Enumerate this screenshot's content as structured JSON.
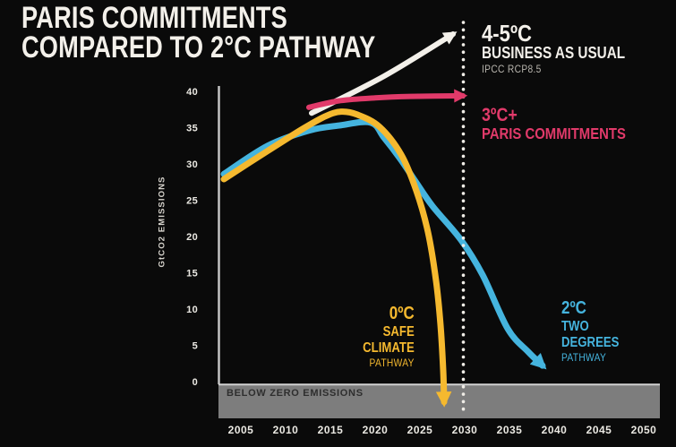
{
  "title": {
    "line1": "PARIS COMMITMENTS",
    "line2": "COMPARED TO 2°C PATHWAY"
  },
  "labels": {
    "bau": {
      "temp": "4-5ºC",
      "name": "BUSINESS AS USUAL",
      "source": "IPCC RCP8.5"
    },
    "paris": {
      "temp": "3ºC+",
      "name": "PARIS COMMITMENTS"
    },
    "safe": {
      "temp": "0ºC",
      "line1": "SAFE",
      "line2": "CLIMATE",
      "line3": "PATHWAY"
    },
    "two": {
      "temp": "2ºC",
      "line1": "TWO",
      "line2": "DEGREES",
      "line3": "PATHWAY"
    },
    "below_zero": "BELOW ZERO EMISSIONS",
    "y_axis": "GtCO2 EMISSIONS"
  },
  "colors": {
    "background": "#0a0a0a",
    "white_line": "#f3f0ea",
    "pink": "#e13a6a",
    "yellow": "#f5b92f",
    "blue": "#45b4de",
    "band": "#7d7d7d",
    "band_border": "#d2d2d2",
    "axis_line": "#c9c9c9",
    "tick_text": "#ebe9e3",
    "ipcc_text": "#b8b5ae",
    "band_text": "#2e2e2e",
    "ylabel_text": "#d6d3cc",
    "dotted_line": "#f0ede7"
  },
  "chart_data": {
    "type": "line",
    "title": "PARIS COMMITMENTS COMPARED TO 2°C PATHWAY",
    "xlabel": "",
    "ylabel": "GtCO2 EMISSIONS",
    "yticks": [
      0,
      5,
      10,
      15,
      20,
      25,
      30,
      35,
      40
    ],
    "xticks": [
      2005,
      2010,
      2015,
      2020,
      2025,
      2030,
      2035,
      2040,
      2045,
      2050
    ],
    "ylim": [
      0,
      40
    ],
    "xlim": [
      2003,
      2052
    ],
    "grid": false,
    "legend_position": "inline-annotations",
    "series": [
      {
        "id": "bau",
        "name": "4-5ºC Business as usual (IPCC RCP8.5)",
        "color": "#f3f0ea",
        "arrow": true,
        "points": [
          [
            2012.9,
            37.0
          ],
          [
            2021.0,
            42.1
          ],
          [
            2028.7,
            47.9
          ]
        ]
      },
      {
        "id": "paris",
        "name": "3ºC+ Paris Commitments",
        "color": "#e13a6a",
        "arrow": true,
        "points": [
          [
            2012.6,
            37.8
          ],
          [
            2016.0,
            38.7
          ],
          [
            2020.0,
            39.1
          ],
          [
            2024.0,
            39.3
          ],
          [
            2029.8,
            39.4
          ]
        ]
      },
      {
        "id": "safe",
        "name": "0ºC Safe Climate Pathway",
        "color": "#f5b92f",
        "arrow": true,
        "points": [
          [
            2003.1,
            27.9
          ],
          [
            2008.0,
            31.8
          ],
          [
            2012.0,
            34.9
          ],
          [
            2014.5,
            36.6
          ],
          [
            2016.2,
            37.2
          ],
          [
            2018.0,
            36.8
          ],
          [
            2020.5,
            35.1
          ],
          [
            2022.9,
            31.3
          ],
          [
            2024.6,
            26.3
          ],
          [
            2025.9,
            20.6
          ],
          [
            2026.8,
            13.9
          ],
          [
            2027.3,
            7.8
          ],
          [
            2027.6,
            1.5
          ],
          [
            2027.7,
            -2.8
          ]
        ]
      },
      {
        "id": "two",
        "name": "2ºC Two Degrees Pathway",
        "color": "#45b4de",
        "arrow": true,
        "points": [
          [
            2003.1,
            28.6
          ],
          [
            2008.0,
            32.5
          ],
          [
            2012.6,
            34.6
          ],
          [
            2016.0,
            35.3
          ],
          [
            2019.5,
            35.7
          ],
          [
            2021.0,
            33.6
          ],
          [
            2022.8,
            30.7
          ],
          [
            2024.5,
            27.6
          ],
          [
            2026.4,
            24.2
          ],
          [
            2029.6,
            19.5
          ],
          [
            2032.0,
            14.7
          ],
          [
            2034.8,
            7.3
          ],
          [
            2037.1,
            4.1
          ],
          [
            2038.7,
            2.2
          ]
        ]
      }
    ],
    "annotations": {
      "below_zero_band": "BELOW ZERO EMISSIONS",
      "dotted_line_year": 2030
    }
  }
}
